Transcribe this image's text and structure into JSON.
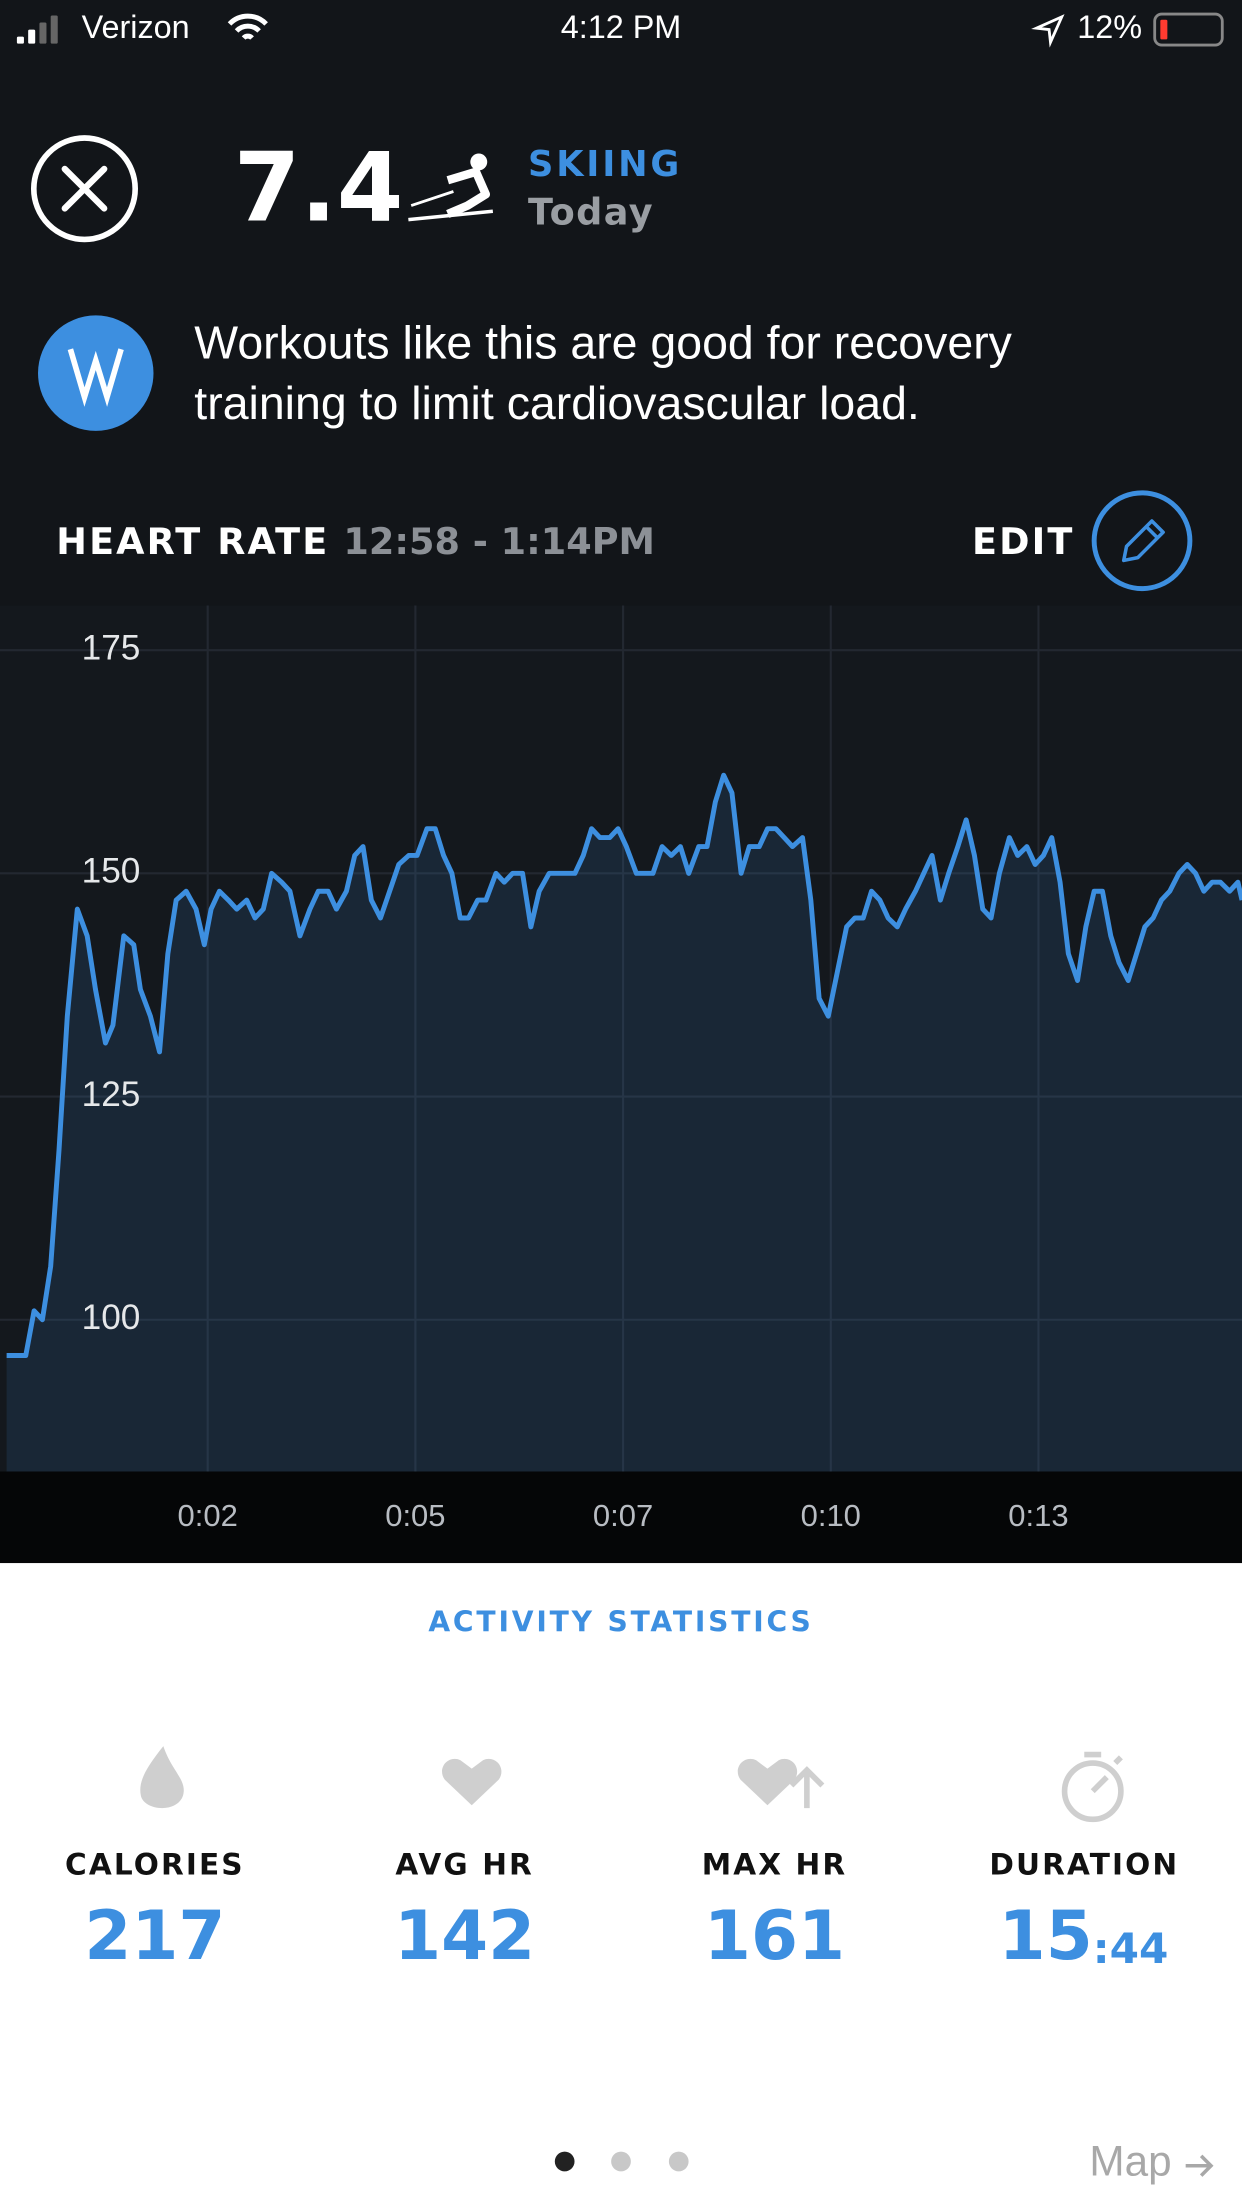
{
  "status_bar": {
    "carrier": "Verizon",
    "time": "4:12 PM",
    "battery": "12%"
  },
  "header": {
    "score": "7.4",
    "activity": "SKIING",
    "date": "Today"
  },
  "insight": {
    "lines": [
      "Workouts like this are good for recovery",
      "training to limit cardiovascular load."
    ]
  },
  "edit_button": "EDIT",
  "chart_data": {
    "type": "line",
    "title": "HEART RATE",
    "subtitle": "12:58 - 1:14PM",
    "color": "#3d8fe0",
    "grid": true,
    "x": [
      0.08,
      0.31,
      0.41,
      0.51,
      0.61,
      0.71,
      0.81,
      0.93,
      1.05,
      1.15,
      1.27,
      1.36,
      1.49,
      1.61,
      1.69,
      1.81,
      1.92,
      2.02,
      2.12,
      2.24,
      2.36,
      2.46,
      2.54,
      2.64,
      2.75,
      2.85,
      2.97,
      3.07,
      3.17,
      3.27,
      3.39,
      3.49,
      3.61,
      3.73,
      3.83,
      3.95,
      4.05,
      4.17,
      4.27,
      4.37,
      4.47,
      4.58,
      4.69,
      4.8,
      4.92,
      5.02,
      5.14,
      5.24,
      5.34,
      5.44,
      5.54,
      5.64,
      5.75,
      5.85,
      5.97,
      6.07,
      6.17,
      6.29,
      6.39,
      6.49,
      6.61,
      6.71,
      6.81,
      6.92,
      7.02,
      7.12,
      7.22,
      7.34,
      7.44,
      7.54,
      7.66,
      7.76,
      7.86,
      7.97,
      8.08,
      8.19,
      8.29,
      8.41,
      8.51,
      8.61,
      8.71,
      8.81,
      8.92,
      9.02,
      9.14,
      9.24,
      9.34,
      9.44,
      9.54,
      9.66,
      9.76,
      9.86,
      9.97,
      10.08,
      10.19,
      10.29,
      10.39,
      10.49,
      10.59,
      10.69,
      10.8,
      10.9,
      11.02,
      11.12,
      11.22,
      11.32,
      11.42,
      11.53,
      11.63,
      11.73,
      11.83,
      11.93,
      12.03,
      12.15,
      12.25,
      12.36,
      12.46,
      12.56,
      12.66,
      12.76,
      12.86,
      12.97,
      13.07,
      13.17,
      13.27,
      13.37,
      13.47,
      13.58,
      13.68,
      13.78,
      13.88,
      13.98,
      14.08,
      14.19,
      14.29,
      14.39,
      14.49,
      14.59,
      14.69,
      14.8,
      14.9,
      14.95
    ],
    "values": [
      96,
      96,
      101,
      100,
      106,
      119,
      134,
      146,
      143,
      137,
      131,
      133,
      143,
      142,
      137,
      134,
      130,
      141,
      147,
      148,
      146,
      142,
      146,
      148,
      147,
      146,
      147,
      145,
      146,
      150,
      149,
      148,
      143,
      146,
      148,
      148,
      146,
      148,
      152,
      153,
      147,
      145,
      148,
      151,
      152,
      152,
      155,
      155,
      152,
      150,
      145,
      145,
      147,
      147,
      150,
      149,
      150,
      150,
      144,
      148,
      150,
      150,
      150,
      150,
      152,
      155,
      154,
      154,
      155,
      153,
      150,
      150,
      150,
      153,
      152,
      153,
      150,
      153,
      153,
      158,
      161,
      159,
      150,
      153,
      153,
      155,
      155,
      154,
      153,
      154,
      147,
      136,
      134,
      139,
      144,
      145,
      145,
      148,
      147,
      145,
      144,
      146,
      148,
      150,
      152,
      147,
      150,
      153,
      156,
      152,
      146,
      145,
      150,
      154,
      152,
      153,
      151,
      152,
      154,
      149,
      141,
      138,
      144,
      148,
      148,
      143,
      140,
      138,
      141,
      144,
      145,
      147,
      148,
      150,
      151,
      150,
      148,
      149,
      149,
      148,
      149,
      147
    ],
    "xlim": [
      0,
      14.95
    ],
    "ylim": [
      83,
      180
    ],
    "xticks": [
      {
        "value": 2.5,
        "label": "0:02"
      },
      {
        "value": 5,
        "label": "0:05"
      },
      {
        "value": 7.5,
        "label": "0:07"
      },
      {
        "value": 10,
        "label": "0:10"
      },
      {
        "value": 12.5,
        "label": "0:13"
      }
    ],
    "yticks": [
      100,
      125,
      150,
      175
    ]
  },
  "stats": {
    "title": "ACTIVITY STATISTICS",
    "items": [
      {
        "label": "CALORIES",
        "value": "217"
      },
      {
        "label": "AVG HR",
        "value": "142"
      },
      {
        "label": "MAX HR",
        "value": "161"
      },
      {
        "label": "DURATION",
        "value": "15",
        "value_suffix": ":44"
      }
    ]
  },
  "map_link": "Map"
}
